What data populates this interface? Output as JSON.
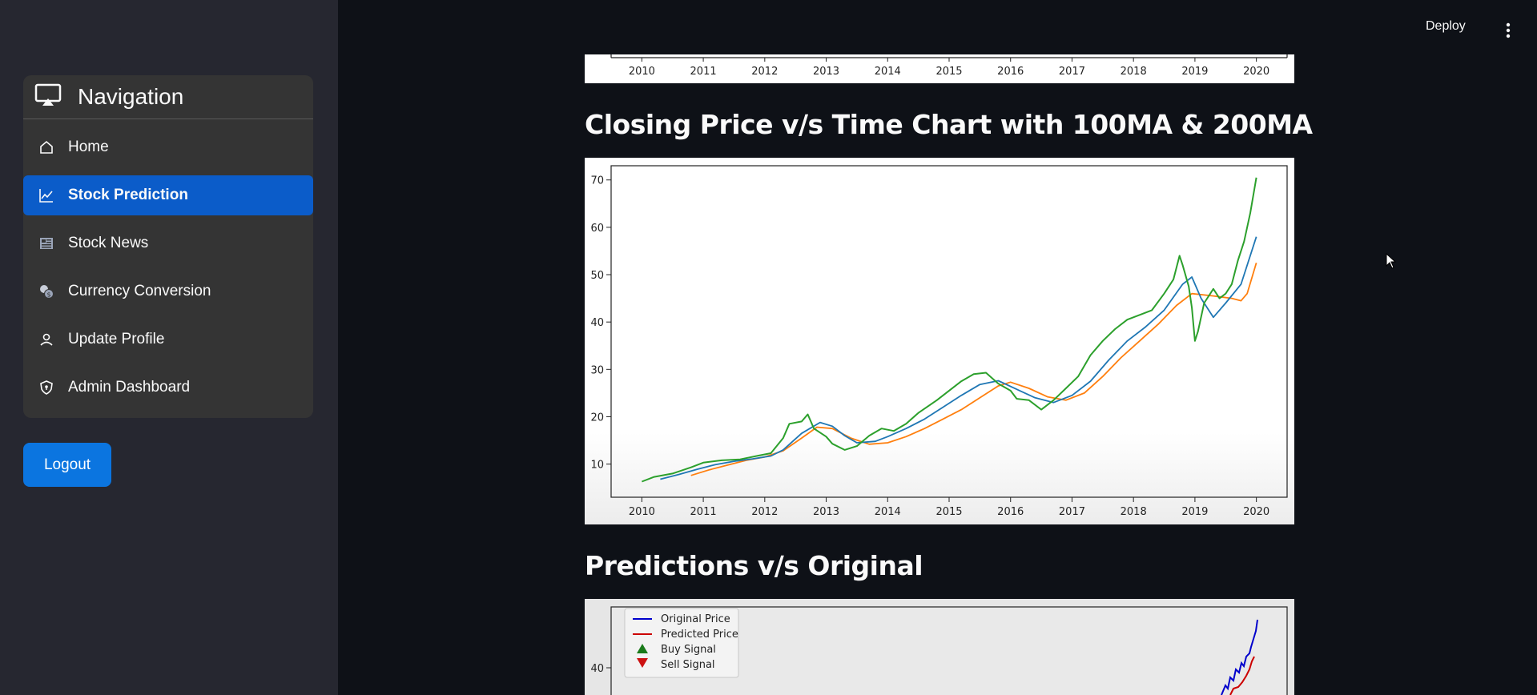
{
  "app": {
    "deploy_label": "Deploy"
  },
  "sidebar": {
    "title": "Navigation",
    "items": [
      {
        "label": "Home",
        "icon": "home-icon",
        "active": false
      },
      {
        "label": "Stock Prediction",
        "icon": "chart-line-icon",
        "active": true
      },
      {
        "label": "Stock News",
        "icon": "newspaper-icon",
        "active": false
      },
      {
        "label": "Currency Conversion",
        "icon": "coins-icon",
        "active": false
      },
      {
        "label": "Update Profile",
        "icon": "person-icon",
        "active": false
      },
      {
        "label": "Admin Dashboard",
        "icon": "shield-icon",
        "active": false
      }
    ],
    "logout_label": "Logout"
  },
  "colors": {
    "accent_active": "#0b5cc9",
    "button": "#0b75e0",
    "price": "#2ca02c",
    "ma100": "#1f77b4",
    "ma200": "#ff7f0e",
    "original": "#0000cc",
    "predicted": "#cc0000"
  },
  "main": {
    "heading_ma": "Closing Price v/s Time Chart with 100MA & 200MA",
    "heading_pred": "Predictions v/s Original"
  },
  "chart_data": [
    {
      "type": "line",
      "x_ticks": [
        "2010",
        "2011",
        "2012",
        "2013",
        "2014",
        "2015",
        "2016",
        "2017",
        "2018",
        "2019",
        "2020"
      ],
      "partial": "bottom axis only visible"
    },
    {
      "type": "line",
      "title": "",
      "xlabel": "",
      "ylabel": "",
      "x_ticks": [
        "2010",
        "2011",
        "2012",
        "2013",
        "2014",
        "2015",
        "2016",
        "2017",
        "2018",
        "2019",
        "2020"
      ],
      "y_ticks": [
        10,
        20,
        30,
        40,
        50,
        60,
        70
      ],
      "xlim": [
        2009.5,
        2020.5
      ],
      "ylim": [
        3,
        73
      ],
      "grid": false,
      "series": [
        {
          "color": "#2ca02c",
          "points": [
            [
              2010.0,
              6.3
            ],
            [
              2010.2,
              7.3
            ],
            [
              2010.5,
              8.0
            ],
            [
              2010.8,
              9.3
            ],
            [
              2011.0,
              10.3
            ],
            [
              2011.3,
              10.8
            ],
            [
              2011.6,
              11.0
            ],
            [
              2011.9,
              11.8
            ],
            [
              2012.1,
              12.3
            ],
            [
              2012.3,
              15.5
            ],
            [
              2012.4,
              18.5
            ],
            [
              2012.6,
              19.0
            ],
            [
              2012.7,
              20.5
            ],
            [
              2012.8,
              17.5
            ],
            [
              2013.0,
              15.8
            ],
            [
              2013.1,
              14.3
            ],
            [
              2013.3,
              13.0
            ],
            [
              2013.5,
              13.8
            ],
            [
              2013.7,
              16.0
            ],
            [
              2013.9,
              17.5
            ],
            [
              2014.1,
              17.0
            ],
            [
              2014.3,
              18.5
            ],
            [
              2014.5,
              20.8
            ],
            [
              2014.8,
              23.5
            ],
            [
              2015.0,
              25.5
            ],
            [
              2015.2,
              27.5
            ],
            [
              2015.4,
              29.0
            ],
            [
              2015.6,
              29.3
            ],
            [
              2015.8,
              27.0
            ],
            [
              2016.0,
              25.5
            ],
            [
              2016.1,
              23.8
            ],
            [
              2016.3,
              23.5
            ],
            [
              2016.5,
              21.5
            ],
            [
              2016.7,
              23.5
            ],
            [
              2016.9,
              26.0
            ],
            [
              2017.1,
              28.5
            ],
            [
              2017.3,
              33.0
            ],
            [
              2017.5,
              36.0
            ],
            [
              2017.7,
              38.5
            ],
            [
              2017.9,
              40.5
            ],
            [
              2018.1,
              41.5
            ],
            [
              2018.3,
              42.5
            ],
            [
              2018.5,
              46.0
            ],
            [
              2018.65,
              49.0
            ],
            [
              2018.75,
              54.0
            ],
            [
              2018.8,
              52.0
            ],
            [
              2018.9,
              47.5
            ],
            [
              2018.95,
              43.0
            ],
            [
              2019.0,
              36.0
            ],
            [
              2019.05,
              38.0
            ],
            [
              2019.15,
              44.0
            ],
            [
              2019.3,
              47.0
            ],
            [
              2019.4,
              45.0
            ],
            [
              2019.5,
              46.0
            ],
            [
              2019.6,
              48.0
            ],
            [
              2019.7,
              53.0
            ],
            [
              2019.8,
              57.0
            ],
            [
              2019.9,
              63.0
            ],
            [
              2020.0,
              70.5
            ]
          ]
        },
        {
          "color": "#1f77b4",
          "points": [
            [
              2010.3,
              6.8
            ],
            [
              2010.6,
              7.8
            ],
            [
              2010.9,
              8.9
            ],
            [
              2011.2,
              9.9
            ],
            [
              2011.5,
              10.6
            ],
            [
              2011.8,
              11.1
            ],
            [
              2012.1,
              11.7
            ],
            [
              2012.3,
              13.0
            ],
            [
              2012.6,
              16.5
            ],
            [
              2012.9,
              18.8
            ],
            [
              2013.1,
              18.0
            ],
            [
              2013.3,
              16.0
            ],
            [
              2013.5,
              14.5
            ],
            [
              2013.8,
              14.8
            ],
            [
              2014.0,
              15.8
            ],
            [
              2014.3,
              17.5
            ],
            [
              2014.6,
              19.5
            ],
            [
              2014.9,
              22.0
            ],
            [
              2015.2,
              24.5
            ],
            [
              2015.5,
              26.8
            ],
            [
              2015.8,
              27.6
            ],
            [
              2016.1,
              25.8
            ],
            [
              2016.4,
              24.0
            ],
            [
              2016.7,
              23.0
            ],
            [
              2017.0,
              24.5
            ],
            [
              2017.3,
              27.5
            ],
            [
              2017.6,
              32.0
            ],
            [
              2017.9,
              36.0
            ],
            [
              2018.2,
              39.0
            ],
            [
              2018.5,
              42.5
            ],
            [
              2018.8,
              48.0
            ],
            [
              2018.95,
              49.5
            ],
            [
              2019.1,
              45.0
            ],
            [
              2019.3,
              41.0
            ],
            [
              2019.5,
              44.0
            ],
            [
              2019.75,
              48.0
            ],
            [
              2020.0,
              58.0
            ]
          ]
        },
        {
          "color": "#ff7f0e",
          "points": [
            [
              2010.8,
              7.6
            ],
            [
              2011.1,
              8.8
            ],
            [
              2011.4,
              9.8
            ],
            [
              2011.7,
              10.8
            ],
            [
              2012.0,
              11.5
            ],
            [
              2012.3,
              12.8
            ],
            [
              2012.6,
              15.5
            ],
            [
              2012.85,
              17.8
            ],
            [
              2013.1,
              17.5
            ],
            [
              2013.4,
              15.5
            ],
            [
              2013.7,
              14.2
            ],
            [
              2014.0,
              14.5
            ],
            [
              2014.3,
              15.8
            ],
            [
              2014.6,
              17.5
            ],
            [
              2014.9,
              19.5
            ],
            [
              2015.2,
              21.5
            ],
            [
              2015.5,
              24.0
            ],
            [
              2015.8,
              26.5
            ],
            [
              2016.0,
              27.3
            ],
            [
              2016.3,
              26.0
            ],
            [
              2016.6,
              24.2
            ],
            [
              2016.9,
              23.5
            ],
            [
              2017.2,
              25.0
            ],
            [
              2017.5,
              28.5
            ],
            [
              2017.8,
              32.5
            ],
            [
              2018.1,
              36.0
            ],
            [
              2018.4,
              39.5
            ],
            [
              2018.7,
              43.5
            ],
            [
              2018.95,
              46.0
            ],
            [
              2019.3,
              45.5
            ],
            [
              2019.6,
              45.0
            ],
            [
              2019.75,
              44.5
            ],
            [
              2019.85,
              46.0
            ],
            [
              2020.0,
              52.5
            ]
          ]
        }
      ]
    },
    {
      "type": "line",
      "partial": "top portion only visible",
      "y_ticks": [
        40
      ],
      "legend": [
        "Original Price",
        "Predicted Price",
        "Buy Signal",
        "Sell Signal"
      ],
      "legend_position": "top-left",
      "series": [
        {
          "name": "Original Price",
          "color": "#0000cc"
        },
        {
          "name": "Predicted Price",
          "color": "#cc0000"
        }
      ]
    }
  ]
}
